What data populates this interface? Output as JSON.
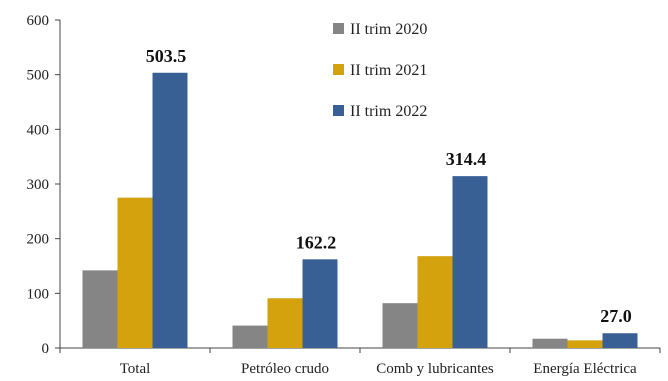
{
  "chart_data": {
    "type": "bar",
    "categories": [
      "Total",
      "Petróleo crudo",
      "Comb y lubricantes",
      "Energía Eléctrica"
    ],
    "series": [
      {
        "name": "II trim 2020",
        "color": "#858585",
        "values": [
          142,
          41,
          82,
          17
        ]
      },
      {
        "name": "II trim 2021",
        "color": "#D4A20C",
        "values": [
          275,
          91,
          168,
          14
        ]
      },
      {
        "name": "II trim 2022",
        "color": "#386095",
        "values": [
          503.5,
          162.2,
          314.4,
          27.0
        ]
      }
    ],
    "data_labels": [
      "503.5",
      "162.2",
      "314.4",
      "27.0"
    ],
    "data_label_series": 2,
    "title": "",
    "xlabel": "",
    "ylabel": "",
    "ylim": [
      0,
      600
    ],
    "yticks": [
      0,
      100,
      200,
      300,
      400,
      500,
      600
    ],
    "grid": false,
    "legend": "top-center"
  }
}
